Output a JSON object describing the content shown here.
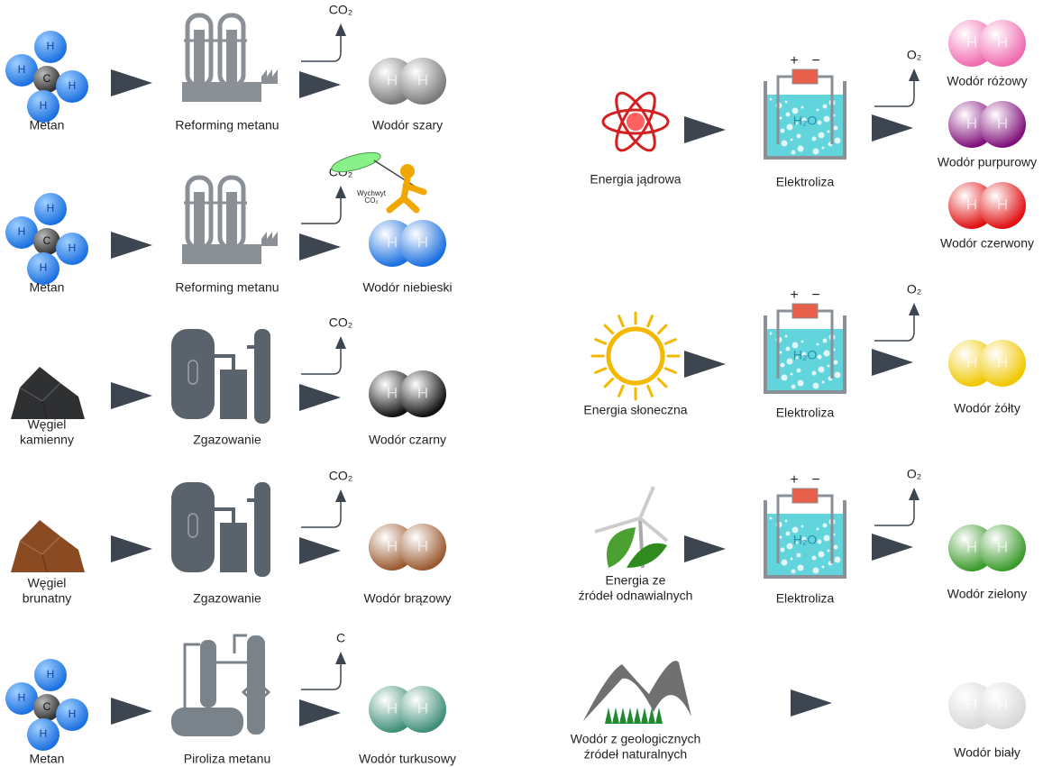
{
  "left": [
    {
      "source": {
        "label": [
          "Metan"
        ],
        "icon": "methane",
        "atoms": [
          "H",
          "H",
          "C",
          "H",
          "H"
        ]
      },
      "process": {
        "label": [
          "Reforming metanu"
        ],
        "icon": "reformer"
      },
      "byproduct": "CO₂",
      "product": {
        "label": [
          "Wodór szary"
        ],
        "atoms": [
          "H",
          "H"
        ],
        "color": "#7a7a7a"
      }
    },
    {
      "source": {
        "label": [
          "Metan"
        ],
        "icon": "methane",
        "atoms": [
          "H",
          "H",
          "C",
          "H",
          "H"
        ]
      },
      "process": {
        "label": [
          "Reforming metanu"
        ],
        "icon": "reformer"
      },
      "byproduct": "CO₂",
      "capture": [
        "Wychwyt",
        "CO₂"
      ],
      "product": {
        "label": [
          "Wodór niebieski"
        ],
        "atoms": [
          "H",
          "H"
        ],
        "color": "#1a6fe0"
      }
    },
    {
      "source": {
        "label": [
          "Węgiel",
          "kamienny"
        ],
        "icon": "coal",
        "color": "#2f3032"
      },
      "process": {
        "label": [
          "Zgazowanie"
        ],
        "icon": "gasifier"
      },
      "byproduct": "CO₂",
      "product": {
        "label": [
          "Wodór czarny"
        ],
        "atoms": [
          "H",
          "H"
        ],
        "color": "#111111"
      }
    },
    {
      "source": {
        "label": [
          "Węgiel",
          "brunatny"
        ],
        "icon": "coal",
        "color": "#8a4a22"
      },
      "process": {
        "label": [
          "Zgazowanie"
        ],
        "icon": "gasifier"
      },
      "byproduct": "CO₂",
      "product": {
        "label": [
          "Wodór brązowy"
        ],
        "atoms": [
          "H",
          "H"
        ],
        "color": "#9a5a30"
      }
    },
    {
      "source": {
        "label": [
          "Metan"
        ],
        "icon": "methane",
        "atoms": [
          "H",
          "H",
          "C",
          "H",
          "H"
        ]
      },
      "process": {
        "label": [
          "Piroliza metanu"
        ],
        "icon": "pyrolysis"
      },
      "byproduct": "C",
      "product": {
        "label": [
          "Wodór turkusowy"
        ],
        "atoms": [
          "H",
          "H"
        ],
        "color": "#3f8f78"
      }
    }
  ],
  "right": [
    {
      "source": {
        "label": [
          "Energia jądrowa"
        ],
        "icon": "atom"
      },
      "process": {
        "label": [
          "Elektroliza"
        ],
        "icon": "electrolysis",
        "signs": [
          "+",
          "−"
        ],
        "water": "H₂O"
      },
      "byproduct": "O₂",
      "products": [
        {
          "label": [
            "Wodór różowy"
          ],
          "atoms": [
            "H",
            "H"
          ],
          "color": "#f06ab0"
        },
        {
          "label": [
            "Wodór purpurowy"
          ],
          "atoms": [
            "H",
            "H"
          ],
          "color": "#80107a"
        },
        {
          "label": [
            "Wodór czerwony"
          ],
          "atoms": [
            "H",
            "H"
          ],
          "color": "#e01010"
        }
      ]
    },
    {
      "source": {
        "label": [
          "Energia słoneczna"
        ],
        "icon": "sun"
      },
      "process": {
        "label": [
          "Elektroliza"
        ],
        "icon": "electrolysis",
        "signs": [
          "+",
          "−"
        ],
        "water": "H₂O"
      },
      "byproduct": "O₂",
      "products": [
        {
          "label": [
            "Wodór żółty"
          ],
          "atoms": [
            "H",
            "H"
          ],
          "color": "#f0c800"
        }
      ]
    },
    {
      "source": {
        "label": [
          "Energia ze",
          "źródeł odnawialnych"
        ],
        "icon": "wind"
      },
      "process": {
        "label": [
          "Elektroliza"
        ],
        "icon": "electrolysis",
        "signs": [
          "+",
          "−"
        ],
        "water": "H₂O"
      },
      "byproduct": "O₂",
      "products": [
        {
          "label": [
            "Wodór zielony"
          ],
          "atoms": [
            "H",
            "H"
          ],
          "color": "#3a9a2a"
        }
      ]
    },
    {
      "source": {
        "label": [
          "Wodór z geologicznych",
          "źródeł naturalnych"
        ],
        "icon": "mountains"
      },
      "products": [
        {
          "label": [
            "Wodór biały"
          ],
          "atoms": [
            "H",
            "H"
          ],
          "color": "#d8d8d8"
        }
      ]
    }
  ]
}
